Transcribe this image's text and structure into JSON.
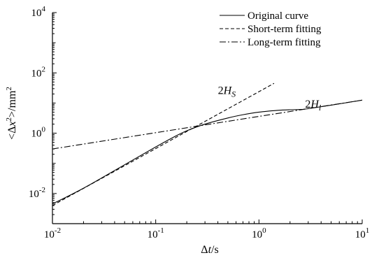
{
  "chart_data": {
    "type": "line",
    "xlabel": "Δt/s",
    "ylabel": "<Δx²>/mm²",
    "xscale": "log",
    "yscale": "log",
    "xlim": [
      0.01,
      10
    ],
    "ylim": [
      0.001,
      10000
    ],
    "grid": false,
    "legend_position": "top-right",
    "x_ticks": [
      {
        "value": 0.01,
        "base": "10",
        "exp": "-2"
      },
      {
        "value": 0.1,
        "base": "10",
        "exp": "-1"
      },
      {
        "value": 1,
        "base": "10",
        "exp": "0"
      },
      {
        "value": 10,
        "base": "10",
        "exp": "1"
      }
    ],
    "y_ticks": [
      {
        "value": 0.01,
        "base": "10",
        "exp": "-2"
      },
      {
        "value": 1,
        "base": "10",
        "exp": "0"
      },
      {
        "value": 100,
        "base": "10",
        "exp": "2"
      },
      {
        "value": 10000,
        "base": "10",
        "exp": "4"
      }
    ],
    "series": [
      {
        "name": "Original curve",
        "dash": "solid",
        "x": [
          0.01,
          0.02,
          0.05,
          0.1,
          0.15,
          0.2,
          0.3,
          0.5,
          0.7,
          1,
          1.5,
          2,
          2.5,
          3,
          5,
          10
        ],
        "y": [
          0.0045,
          0.015,
          0.09,
          0.35,
          0.75,
          1.2,
          2.0,
          3.2,
          4.1,
          5.0,
          5.7,
          6.0,
          6.1,
          6.5,
          8.5,
          12.5
        ]
      },
      {
        "name": "Short-term fitting",
        "dash": "dashed",
        "x": [
          0.01,
          1.4
        ],
        "y": [
          0.004,
          45
        ]
      },
      {
        "name": "Long-term fitting",
        "dash": "dashdot",
        "x": [
          0.01,
          10
        ],
        "y": [
          0.3,
          12.5
        ]
      }
    ],
    "annotations": [
      {
        "id": "hs",
        "main": "2H",
        "sub": "S",
        "x": 0.4,
        "y": 20
      },
      {
        "id": "hl",
        "main": "2H",
        "sub": "l",
        "x": 2.8,
        "y": 7
      }
    ]
  }
}
